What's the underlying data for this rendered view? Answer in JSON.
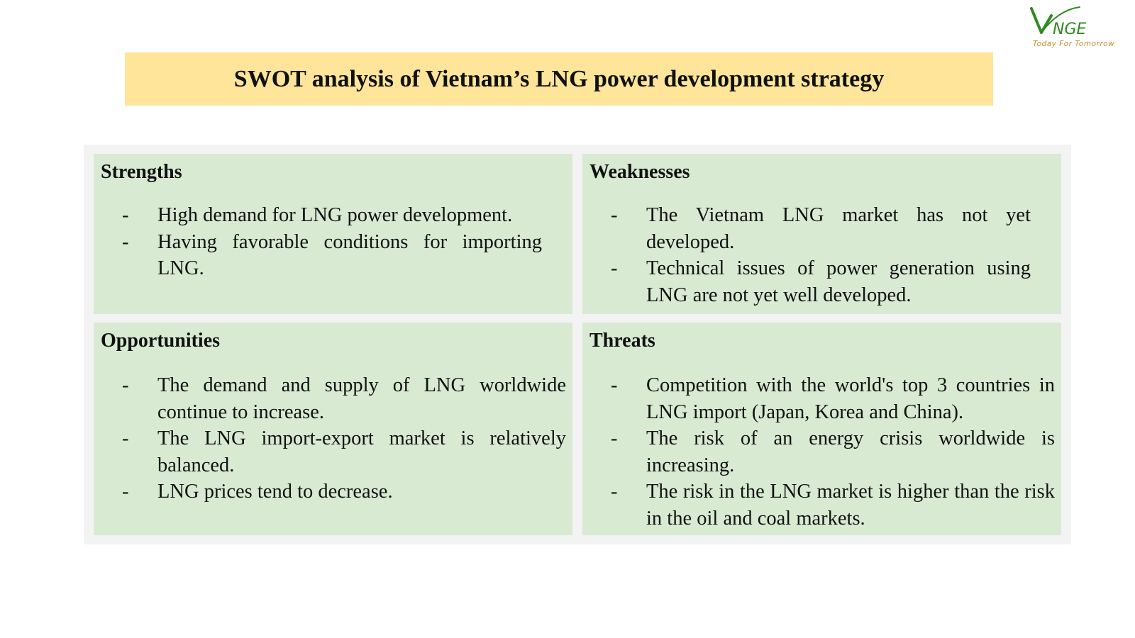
{
  "logo": {
    "brand": "VNGE",
    "tagline": "Today For Tomorrow",
    "brand_color": "#2e8b1e",
    "tagline_color": "#c58a2b"
  },
  "title": "SWOT analysis of Vietnam’s LNG power development strategy",
  "colors": {
    "title_banner": "#ffe599",
    "quadrant_fill": "#d9ead3",
    "frame": "#f3f3f3"
  },
  "bullet": "-",
  "swot": {
    "strengths": {
      "heading": "Strengths",
      "items": [
        "High demand for LNG power development.",
        "Having favorable conditions for importing LNG."
      ]
    },
    "weaknesses": {
      "heading": "Weaknesses",
      "items": [
        "The Vietnam LNG market has not yet developed.",
        "Technical issues of power generation using LNG are not yet well developed."
      ]
    },
    "opportunities": {
      "heading": "Opportunities",
      "items": [
        "The demand and supply of LNG worldwide continue to increase.",
        "The LNG import-export market is relatively balanced.",
        "LNG prices tend to decrease."
      ]
    },
    "threats": {
      "heading": "Threats",
      "items": [
        "Competition with the world's top 3 countries in LNG import (Japan, Korea and China).",
        "The risk of an energy crisis worldwide is increasing.",
        "The risk in the LNG market is higher than the risk in the oil and coal markets."
      ]
    }
  }
}
